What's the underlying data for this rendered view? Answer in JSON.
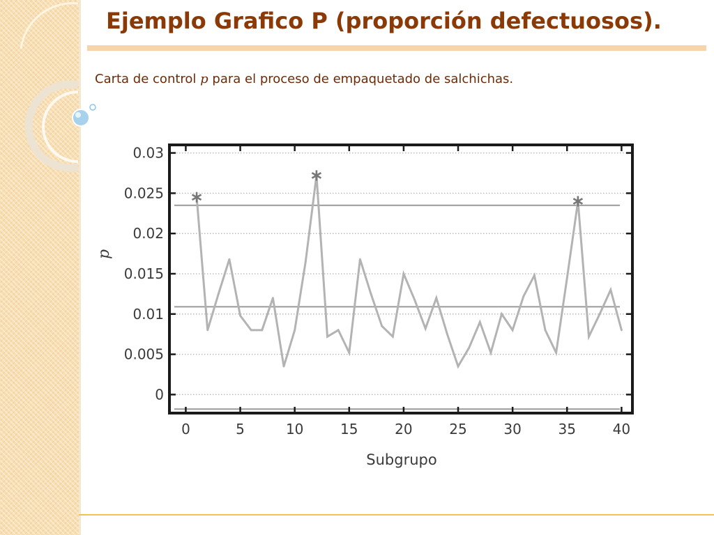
{
  "slide": {
    "title": "Ejemplo Grafico P (proporción defectuosos).",
    "subtitle_before": "Carta de control ",
    "subtitle_var": "p",
    "subtitle_after": " para el proceso de empaquetado de salchichas."
  },
  "colors": {
    "title": "#8b3a07",
    "subtitle": "#6d2a06",
    "title_rule": "#f6d5ad",
    "side_panel": "#f7ddb0",
    "footer_rule": "#f0c44a",
    "series": "#b3b3b3",
    "limit_lines": "#9a9a9a",
    "grid": "#b5b5b5",
    "frame": "#1a1a1a"
  },
  "chart_data": {
    "type": "line",
    "xlabel": "Subgrupo",
    "ylabel": "p",
    "xlim": [
      -1.5,
      41
    ],
    "ylim": [
      -0.0023,
      0.031
    ],
    "xticks": [
      0,
      5,
      10,
      15,
      20,
      25,
      30,
      35,
      40
    ],
    "xtick_labels": [
      "0",
      "5",
      "10",
      "15",
      "20",
      "25",
      "30",
      "35",
      "40"
    ],
    "yticks": [
      0,
      0.005,
      0.01,
      0.015,
      0.02,
      0.025,
      0.03
    ],
    "ytick_labels": [
      "0",
      "0.005",
      "0.01",
      "0.015",
      "0.02",
      "0.025",
      "0.03"
    ],
    "grid": true,
    "grid_style": "dotted horizontal",
    "control_limits": {
      "upper": 0.0235,
      "center": 0.0109,
      "lower": -0.0018
    },
    "series": [
      {
        "x": [
          1,
          2,
          3,
          4,
          5,
          6,
          7,
          8,
          9,
          10,
          11,
          12,
          13,
          14,
          15,
          16,
          17,
          18,
          19,
          20,
          21,
          22,
          23,
          24,
          25,
          26,
          27,
          28,
          29,
          30,
          31,
          32,
          33,
          34,
          35,
          36,
          37,
          38,
          39,
          40
        ],
        "values": [
          0.0245,
          0.008,
          0.0125,
          0.0168,
          0.0098,
          0.008,
          0.008,
          0.012,
          0.0035,
          0.008,
          0.0165,
          0.0272,
          0.0072,
          0.008,
          0.0052,
          0.0168,
          0.0125,
          0.0085,
          0.0072,
          0.015,
          0.0118,
          0.0082,
          0.012,
          0.0075,
          0.0035,
          0.0058,
          0.009,
          0.0052,
          0.01,
          0.008,
          0.0122,
          0.0148,
          0.008,
          0.0052,
          0.0145,
          0.024,
          0.0072,
          0.01,
          0.013,
          0.008
        ],
        "out_of_control_points": [
          1,
          12,
          36
        ]
      }
    ]
  }
}
